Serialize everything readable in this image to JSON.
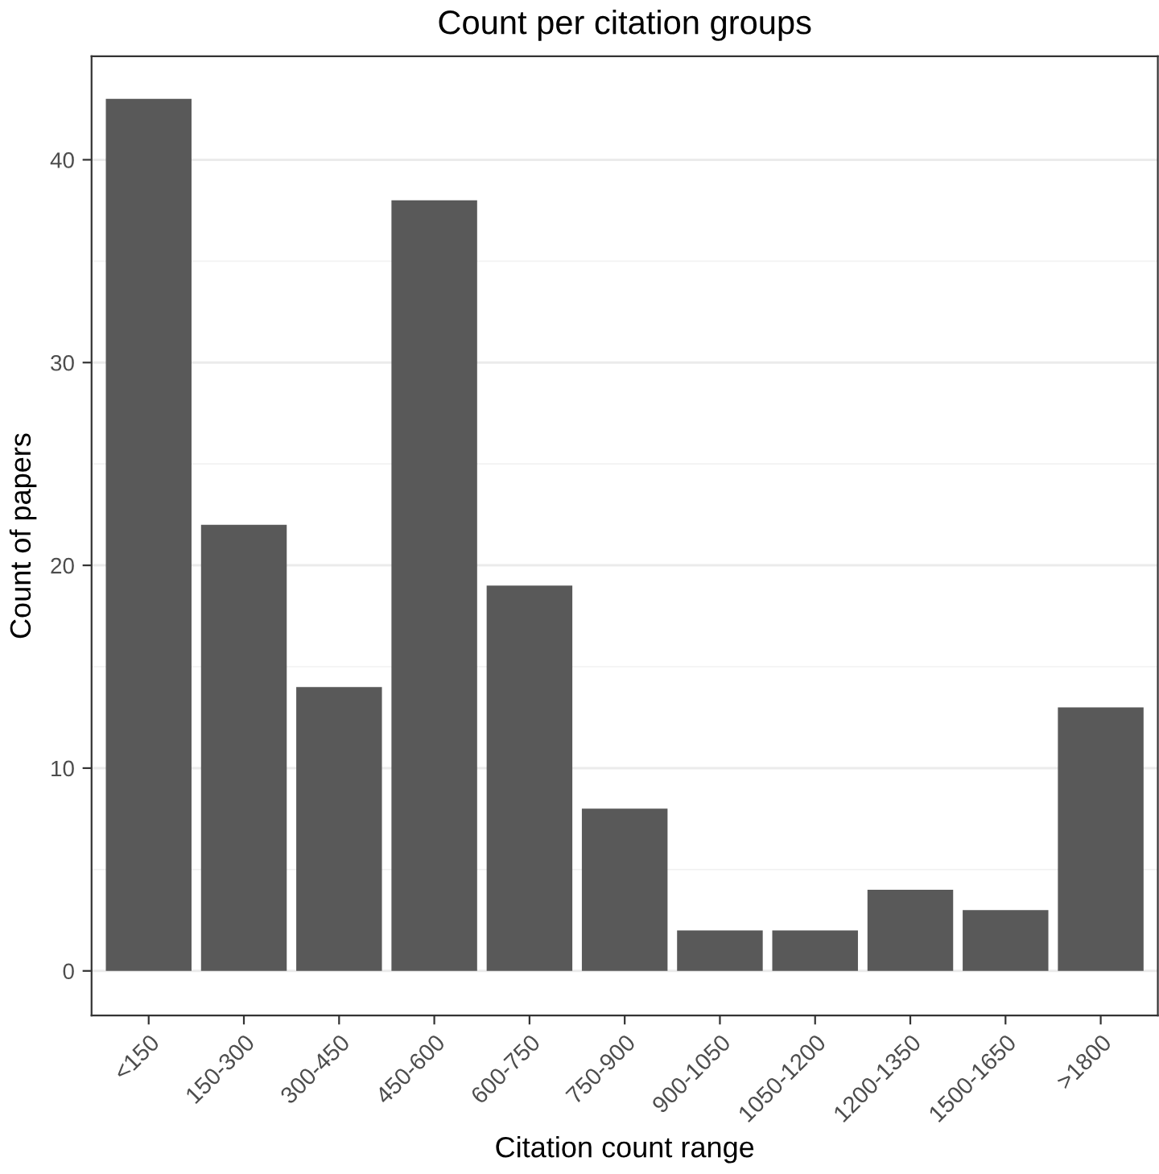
{
  "chart_data": {
    "type": "bar",
    "title": "Count per citation groups",
    "xlabel": "Citation count range",
    "ylabel": "Count of papers",
    "categories": [
      "<150",
      "150-300",
      "300-450",
      "450-600",
      "600-750",
      "750-900",
      "900-1050",
      "1050-1200",
      "1200-1350",
      "1500-1650",
      ">1800"
    ],
    "values": [
      43,
      22,
      14,
      38,
      19,
      8,
      2,
      2,
      4,
      3,
      13
    ],
    "color": "#595959",
    "ylim": [
      -2.2,
      45.1
    ],
    "yticks": [
      0,
      10,
      20,
      30,
      40
    ],
    "grid": "y"
  }
}
